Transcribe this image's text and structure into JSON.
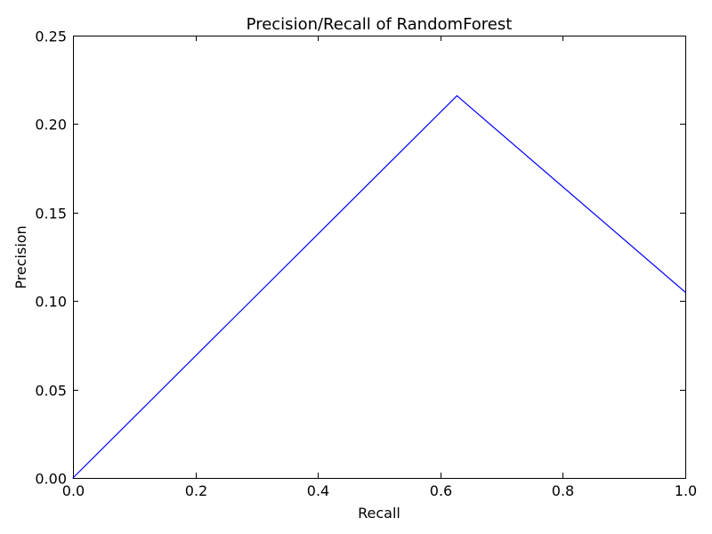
{
  "chart_data": {
    "type": "line",
    "title": "Precision/Recall of RandomForest",
    "xlabel": "Recall",
    "ylabel": "Precision",
    "xlim": [
      0.0,
      1.0
    ],
    "ylim": [
      0.0,
      0.25
    ],
    "x_ticks": [
      "0.0",
      "0.2",
      "0.4",
      "0.6",
      "0.8",
      "1.0"
    ],
    "y_ticks": [
      "0.00",
      "0.05",
      "0.10",
      "0.15",
      "0.20",
      "0.25"
    ],
    "grid": false,
    "series": [
      {
        "color": "#0000ff",
        "x": [
          0.0,
          0.627,
          1.0
        ],
        "y": [
          0.0,
          0.216,
          0.105
        ]
      }
    ]
  }
}
